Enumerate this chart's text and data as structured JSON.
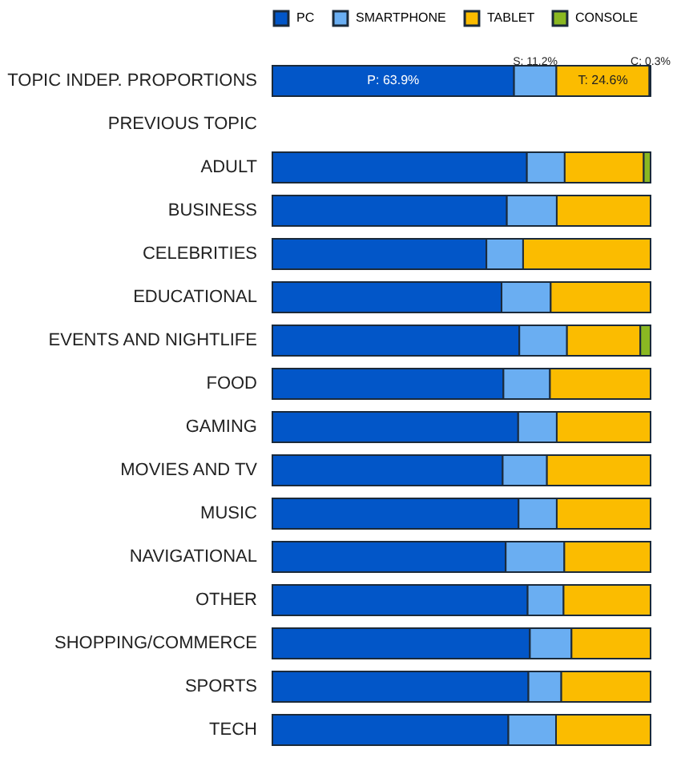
{
  "chart_data": {
    "type": "bar",
    "orientation": "horizontal",
    "stacked": true,
    "categories": [
      "TOPIC INDEP. PROPORTIONS",
      "PREVIOUS TOPIC",
      "ADULT",
      "BUSINESS",
      "CELEBRITIES",
      "EDUCATIONAL",
      "EVENTS AND NIGHTLIFE",
      "FOOD",
      "GAMING",
      "MOVIES AND TV",
      "MUSIC",
      "NAVIGATIONAL",
      "OTHER",
      "SHOPPING/COMMERCE",
      "SPORTS",
      "TECH"
    ],
    "series": [
      {
        "name": "PC",
        "color": "#0256c8",
        "values": [
          63.9,
          null,
          67.3,
          62.0,
          56.6,
          60.6,
          65.3,
          61.1,
          65.0,
          60.9,
          65.1,
          61.7,
          67.5,
          68.1,
          67.7,
          62.4
        ],
        "value_labels": [
          "P: 63.9%",
          null,
          null,
          null,
          null,
          null,
          null,
          null,
          null,
          null,
          null,
          null,
          null,
          null,
          null,
          null
        ]
      },
      {
        "name": "SMARTPHONE",
        "color": "#6aaef2",
        "values": [
          11.2,
          null,
          10.0,
          13.2,
          9.7,
          13.0,
          12.6,
          12.3,
          10.2,
          11.7,
          10.1,
          15.5,
          9.5,
          11.0,
          8.7,
          12.6
        ],
        "value_labels": [
          "S: 11.2%",
          null,
          null,
          null,
          null,
          null,
          null,
          null,
          null,
          null,
          null,
          null,
          null,
          null,
          null,
          null
        ]
      },
      {
        "name": "TABLET",
        "color": "#fbbc00",
        "values": [
          24.6,
          null,
          20.9,
          24.8,
          33.7,
          26.4,
          19.4,
          26.6,
          24.8,
          27.4,
          24.8,
          22.8,
          23.0,
          20.9,
          23.6,
          25.0
        ],
        "value_labels": [
          "T: 24.6%",
          null,
          null,
          null,
          null,
          null,
          null,
          null,
          null,
          null,
          null,
          null,
          null,
          null,
          null,
          null
        ]
      },
      {
        "name": "CONSOLE",
        "color": "#8ab822",
        "values": [
          0.3,
          null,
          1.8,
          null,
          null,
          null,
          2.7,
          null,
          null,
          null,
          null,
          null,
          null,
          null,
          null,
          null
        ],
        "value_labels": [
          "C: 0.3%",
          null,
          null,
          null,
          null,
          null,
          null,
          null,
          null,
          null,
          null,
          null,
          null,
          null,
          null,
          null
        ]
      }
    ],
    "xlim": [
      0,
      100
    ],
    "tick_labels": "y",
    "legend": "top"
  }
}
